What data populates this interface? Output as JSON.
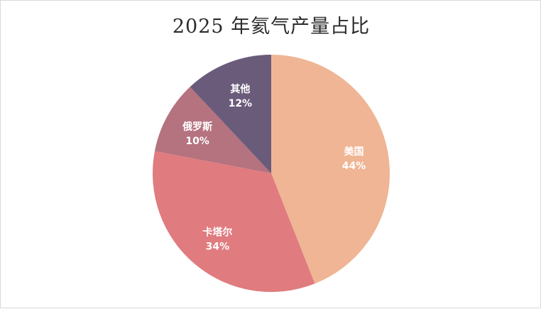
{
  "chart_data": {
    "type": "pie",
    "title": "2025 年氦气产量占比",
    "slices": [
      {
        "label": "美国",
        "value": 44,
        "value_label": "44%",
        "color": "#efb594"
      },
      {
        "label": "卡塔尔",
        "value": 34,
        "value_label": "34%",
        "color": "#e07b7f"
      },
      {
        "label": "俄罗斯",
        "value": 10,
        "value_label": "10%",
        "color": "#b5727f"
      },
      {
        "label": "其他",
        "value": 12,
        "value_label": "12%",
        "color": "#6b5b7b"
      }
    ],
    "start_angle": "12 o'clock",
    "direction": "clockwise",
    "legend": "none"
  }
}
